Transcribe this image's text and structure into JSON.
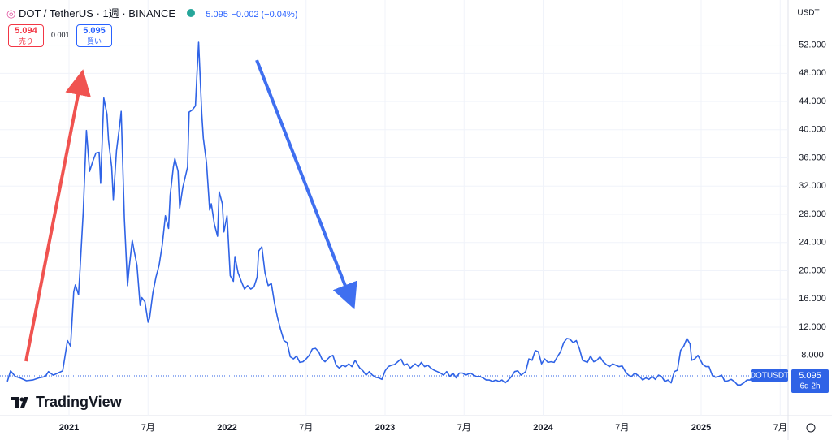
{
  "header": {
    "symbol": "DOT / TetherUS · 1週 · BINANCE",
    "price": "5.095",
    "change": "−0.002 (−0.04%)"
  },
  "trade": {
    "sell_price": "5.094",
    "sell_label": "売り",
    "spread": "0.001",
    "buy_price": "5.095",
    "buy_label": "買い"
  },
  "currency": "USDT",
  "countdown": "6d 2h",
  "logo": "TradingView",
  "chart_data": {
    "type": "line",
    "last_price": 5.095,
    "x": [
      2020.61,
      2020.63,
      2020.66,
      2020.69,
      2020.73,
      2020.77,
      2020.81,
      2020.85,
      2020.87,
      2020.9,
      2020.93,
      2020.96,
      2020.99,
      2021.01,
      2021.03,
      2021.04,
      2021.06,
      2021.07,
      2021.09,
      2021.11,
      2021.13,
      2021.15,
      2021.17,
      2021.19,
      2021.2,
      2021.22,
      2021.24,
      2021.25,
      2021.27,
      2021.28,
      2021.3,
      2021.32,
      2021.33,
      2021.35,
      2021.37,
      2021.38,
      2021.4,
      2021.41,
      2021.43,
      2021.45,
      2021.46,
      2021.48,
      2021.5,
      2021.51,
      2021.53,
      2021.55,
      2021.57,
      2021.59,
      2021.61,
      2021.63,
      2021.64,
      2021.66,
      2021.67,
      2021.69,
      2021.7,
      2021.72,
      2021.75,
      2021.76,
      2021.78,
      2021.8,
      2021.81,
      2021.82,
      2021.84,
      2021.85,
      2021.87,
      2021.89,
      2021.9,
      2021.92,
      2021.94,
      2021.95,
      2021.97,
      2021.98,
      2022.0,
      2022.02,
      2022.04,
      2022.05,
      2022.07,
      2022.09,
      2022.11,
      2022.13,
      2022.15,
      2022.17,
      2022.19,
      2022.2,
      2022.22,
      2022.24,
      2022.26,
      2022.28,
      2022.3,
      2022.32,
      2022.34,
      2022.36,
      2022.38,
      2022.4,
      2022.42,
      2022.44,
      2022.46,
      2022.48,
      2022.5,
      2022.52,
      2022.54,
      2022.56,
      2022.58,
      2022.6,
      2022.62,
      2022.65,
      2022.67,
      2022.69,
      2022.71,
      2022.73,
      2022.75,
      2022.77,
      2022.79,
      2022.81,
      2022.84,
      2022.86,
      2022.88,
      2022.9,
      2022.92,
      2022.94,
      2022.96,
      2022.98,
      2023.0,
      2023.02,
      2023.04,
      2023.06,
      2023.08,
      2023.1,
      2023.12,
      2023.14,
      2023.16,
      2023.19,
      2023.21,
      2023.23,
      2023.25,
      2023.27,
      2023.29,
      2023.31,
      2023.33,
      2023.35,
      2023.37,
      2023.39,
      2023.41,
      2023.43,
      2023.45,
      2023.47,
      2023.49,
      2023.51,
      2023.54,
      2023.56,
      2023.58,
      2023.6,
      2023.62,
      2023.64,
      2023.66,
      2023.68,
      2023.7,
      2023.72,
      2023.74,
      2023.76,
      2023.78,
      2023.8,
      2023.82,
      2023.84,
      2023.86,
      2023.89,
      2023.91,
      2023.93,
      2023.95,
      2023.97,
      2023.99,
      2024.01,
      2024.03,
      2024.05,
      2024.07,
      2024.09,
      2024.11,
      2024.13,
      2024.15,
      2024.17,
      2024.19,
      2024.21,
      2024.23,
      2024.25,
      2024.28,
      2024.3,
      2024.32,
      2024.34,
      2024.36,
      2024.38,
      2024.4,
      2024.42,
      2024.44,
      2024.46,
      2024.48,
      2024.5,
      2024.52,
      2024.54,
      2024.56,
      2024.58,
      2024.61,
      2024.63,
      2024.65,
      2024.67,
      2024.69,
      2024.71,
      2024.73,
      2024.75,
      2024.77,
      2024.79,
      2024.81,
      2024.83,
      2024.85,
      2024.87,
      2024.89,
      2024.91,
      2024.93,
      2024.94,
      2024.96,
      2024.98,
      2025.01,
      2025.03,
      2025.05,
      2025.07,
      2025.09,
      2025.11,
      2025.13,
      2025.15,
      2025.17,
      2025.19,
      2025.21,
      2025.23,
      2025.25,
      2025.27,
      2025.29,
      2025.31,
      2025.33
    ],
    "series": [
      {
        "name": "DOTUSDT",
        "color": "#2f63e6",
        "values": [
          4.3,
          5.8,
          5.0,
          4.8,
          4.4,
          4.5,
          4.8,
          5.0,
          5.7,
          5.2,
          5.5,
          5.8,
          10.1,
          9.3,
          17.0,
          18.0,
          16.6,
          20.3,
          28.4,
          39.9,
          34.1,
          35.5,
          36.7,
          36.8,
          32.4,
          44.5,
          42.2,
          38.5,
          34.7,
          30.1,
          37.0,
          40.5,
          42.6,
          27.4,
          17.9,
          20.3,
          24.3,
          23.1,
          20.8,
          15.1,
          16.2,
          15.6,
          12.7,
          13.3,
          16.8,
          19.1,
          20.8,
          23.7,
          27.8,
          26.0,
          30.7,
          34.7,
          35.9,
          34.1,
          28.9,
          31.8,
          34.7,
          42.5,
          42.8,
          43.4,
          48.0,
          52.4,
          42.2,
          38.8,
          35.3,
          28.6,
          29.5,
          26.6,
          24.9,
          31.2,
          29.5,
          25.5,
          27.8,
          19.3,
          18.5,
          22.0,
          19.7,
          18.5,
          17.4,
          17.9,
          17.4,
          17.7,
          19.1,
          22.8,
          23.4,
          19.7,
          17.9,
          18.2,
          15.4,
          13.3,
          11.6,
          10.1,
          9.8,
          7.8,
          7.5,
          7.9,
          7.0,
          7.1,
          7.5,
          8.0,
          8.9,
          9.0,
          8.5,
          7.5,
          7.1,
          7.8,
          8.0,
          6.6,
          6.2,
          6.6,
          6.4,
          6.8,
          6.4,
          7.3,
          6.2,
          5.8,
          5.2,
          5.7,
          5.2,
          4.9,
          4.8,
          4.6,
          5.8,
          6.4,
          6.6,
          6.7,
          7.1,
          7.5,
          6.6,
          6.8,
          6.2,
          6.8,
          6.4,
          7.0,
          6.4,
          6.6,
          6.2,
          5.9,
          5.7,
          5.5,
          5.2,
          5.7,
          5.0,
          5.5,
          4.8,
          5.5,
          5.5,
          5.2,
          5.5,
          5.2,
          5.0,
          5.0,
          4.8,
          4.5,
          4.5,
          4.3,
          4.5,
          4.3,
          4.5,
          4.1,
          4.5,
          5.0,
          5.7,
          5.8,
          5.2,
          5.7,
          7.5,
          7.3,
          8.7,
          8.5,
          6.8,
          7.5,
          7.0,
          7.1,
          7.0,
          7.8,
          8.5,
          9.8,
          10.4,
          10.3,
          9.8,
          10.1,
          8.9,
          7.3,
          7.0,
          7.9,
          7.1,
          7.3,
          7.8,
          7.1,
          6.7,
          6.4,
          6.8,
          6.6,
          6.4,
          6.5,
          5.7,
          5.2,
          5.0,
          5.5,
          5.0,
          4.5,
          4.8,
          4.6,
          5.0,
          4.6,
          5.2,
          5.0,
          4.3,
          4.5,
          4.1,
          5.7,
          5.9,
          8.7,
          9.3,
          10.4,
          9.6,
          7.3,
          7.5,
          8.0,
          6.7,
          6.4,
          6.4,
          5.2,
          4.9,
          5.0,
          5.2,
          4.3,
          4.4,
          4.6,
          4.3,
          3.8,
          3.8,
          4.1,
          4.5,
          4.5,
          5.1
        ]
      }
    ],
    "xlim": [
      2020.563,
      2025.55
    ],
    "ylim": [
      -0.55,
      58.4
    ],
    "xticks": [
      2021,
      {
        "value": 2021.5,
        "label": "7月"
      },
      2022,
      {
        "value": 2022.5,
        "label": "7月"
      },
      2023,
      {
        "value": 2023.5,
        "label": "7月"
      },
      2024,
      {
        "value": 2024.5,
        "label": "7月"
      },
      2025,
      {
        "value": 2025.5,
        "label": "7月"
      }
    ],
    "yticks": [
      {
        "value": 8,
        "label": "8.000"
      },
      {
        "value": 12,
        "label": "12.000"
      },
      {
        "value": 16,
        "label": "16.000"
      },
      {
        "value": 20,
        "label": "20.000"
      },
      {
        "value": 24,
        "label": "24.000"
      },
      {
        "value": 28,
        "label": "28.000"
      },
      {
        "value": 32,
        "label": "32.000"
      },
      {
        "value": 36,
        "label": "36.000"
      },
      {
        "value": 40,
        "label": "40.000"
      },
      {
        "value": 44,
        "label": "44.000"
      },
      {
        "value": 48,
        "label": "48.000"
      },
      {
        "value": 52,
        "label": "52.000"
      }
    ],
    "grid": true
  }
}
